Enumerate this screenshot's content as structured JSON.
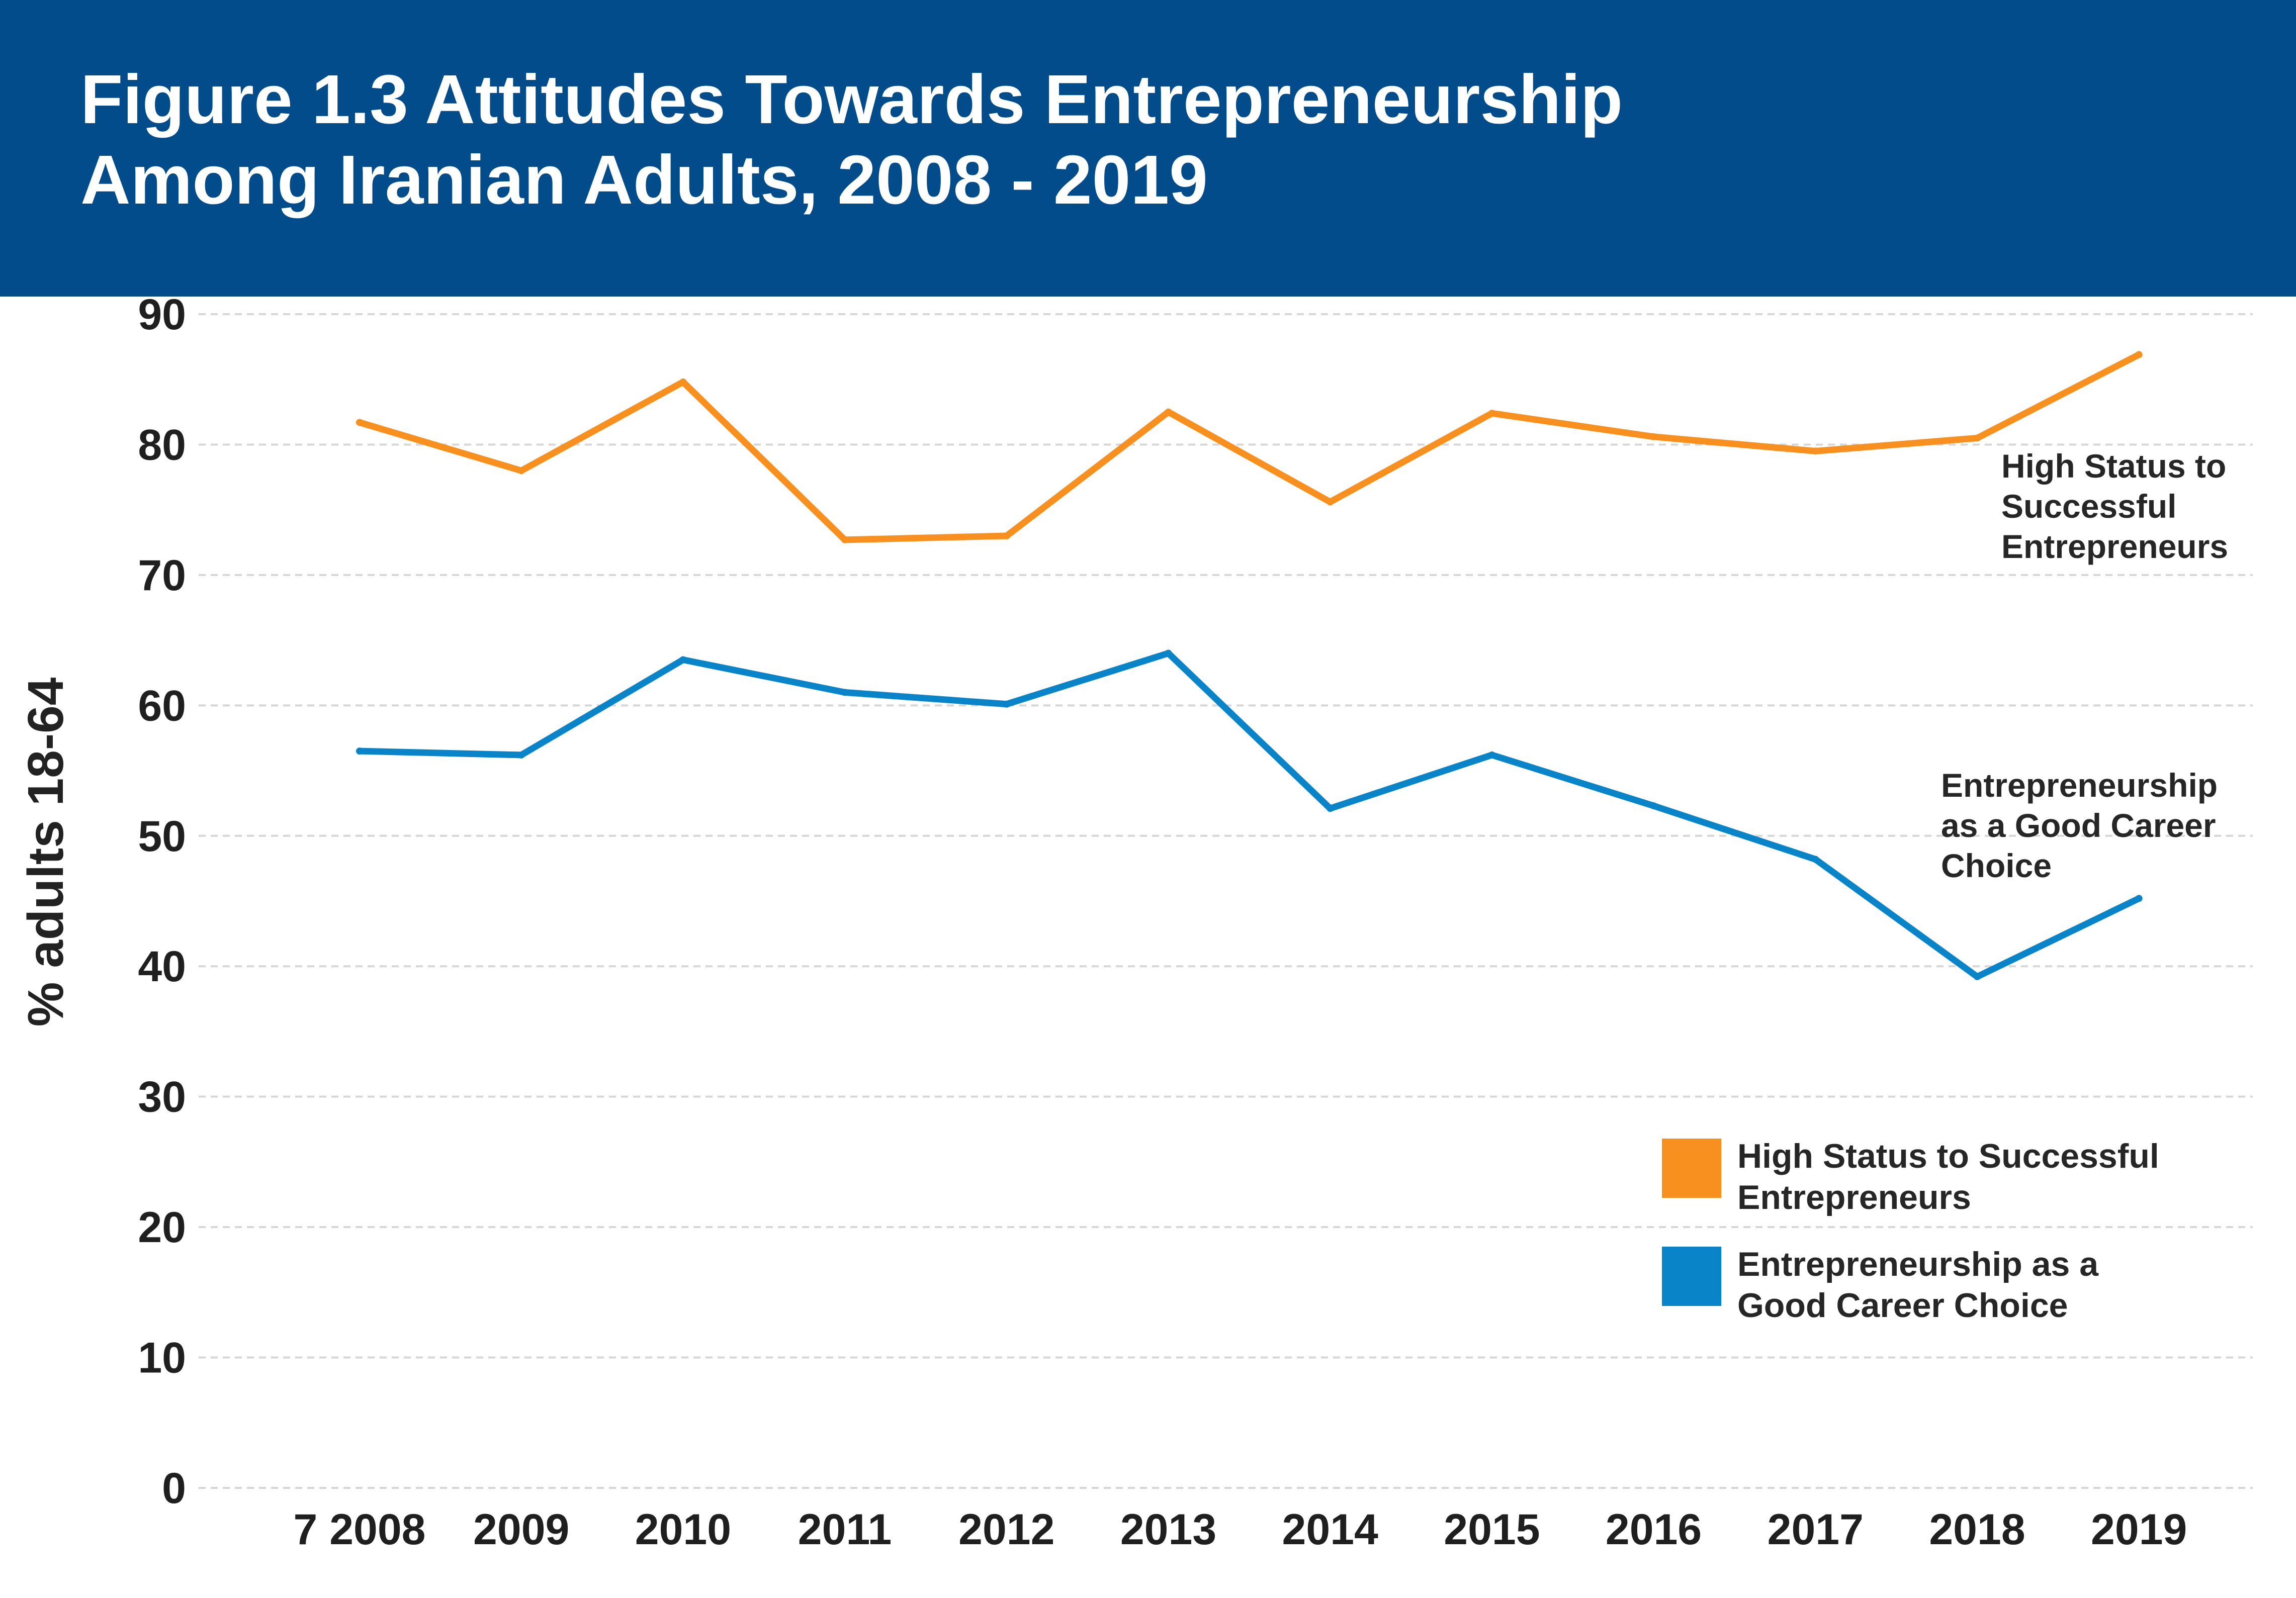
{
  "header": {
    "title_line1": "Figure 1.3 Attitudes Towards Entrepreneurship",
    "title_line2": "Among Iranian Adults, 2008 - 2019",
    "background_color": "#034c8c"
  },
  "chart_data": {
    "type": "line",
    "title": "Figure 1.3 Attitudes Towards Entrepreneurship Among Iranian Adults, 2008 - 2019",
    "xlabel": "",
    "ylabel": "% adults 18-64",
    "x": [
      "2008",
      "2009",
      "2010",
      "2011",
      "2012",
      "2013",
      "2014",
      "2015",
      "2016",
      "2017",
      "2018",
      "2019"
    ],
    "x_tick_labels": [
      "7 2008",
      "2009",
      "2010",
      "2011",
      "2012",
      "2013",
      "2014",
      "2015",
      "2016",
      "2017",
      "2018",
      "2019"
    ],
    "ylim": [
      0,
      90
    ],
    "y_ticks": [
      0,
      10,
      20,
      30,
      40,
      50,
      60,
      70,
      80,
      90
    ],
    "grid": true,
    "legend_position": "bottom-right",
    "series": [
      {
        "name": "High Status to Successful Entrepreneurs",
        "color": "#f7901e",
        "values": [
          81.7,
          78.0,
          84.8,
          72.7,
          73.0,
          82.5,
          75.6,
          82.4,
          80.6,
          79.5,
          80.5,
          86.9
        ],
        "annotation": [
          "High Status to",
          "Successful",
          "Entrepreneurs"
        ]
      },
      {
        "name": "Entrepreneurship as a Good Career Choice",
        "color": "#0a84c9",
        "values": [
          56.5,
          56.2,
          63.5,
          61.0,
          60.1,
          64.0,
          52.1,
          56.2,
          52.3,
          48.2,
          39.2,
          45.2
        ],
        "annotation": [
          "Entrepreneurship",
          "as a Good Career",
          "Choice"
        ]
      }
    ],
    "legend": [
      {
        "lines": [
          "High Status to Successful",
          "Entrepreneurs"
        ],
        "color": "#f7901e"
      },
      {
        "lines": [
          "Entrepreneurship as a",
          "Good Career Choice"
        ],
        "color": "#0a84c9"
      }
    ]
  }
}
